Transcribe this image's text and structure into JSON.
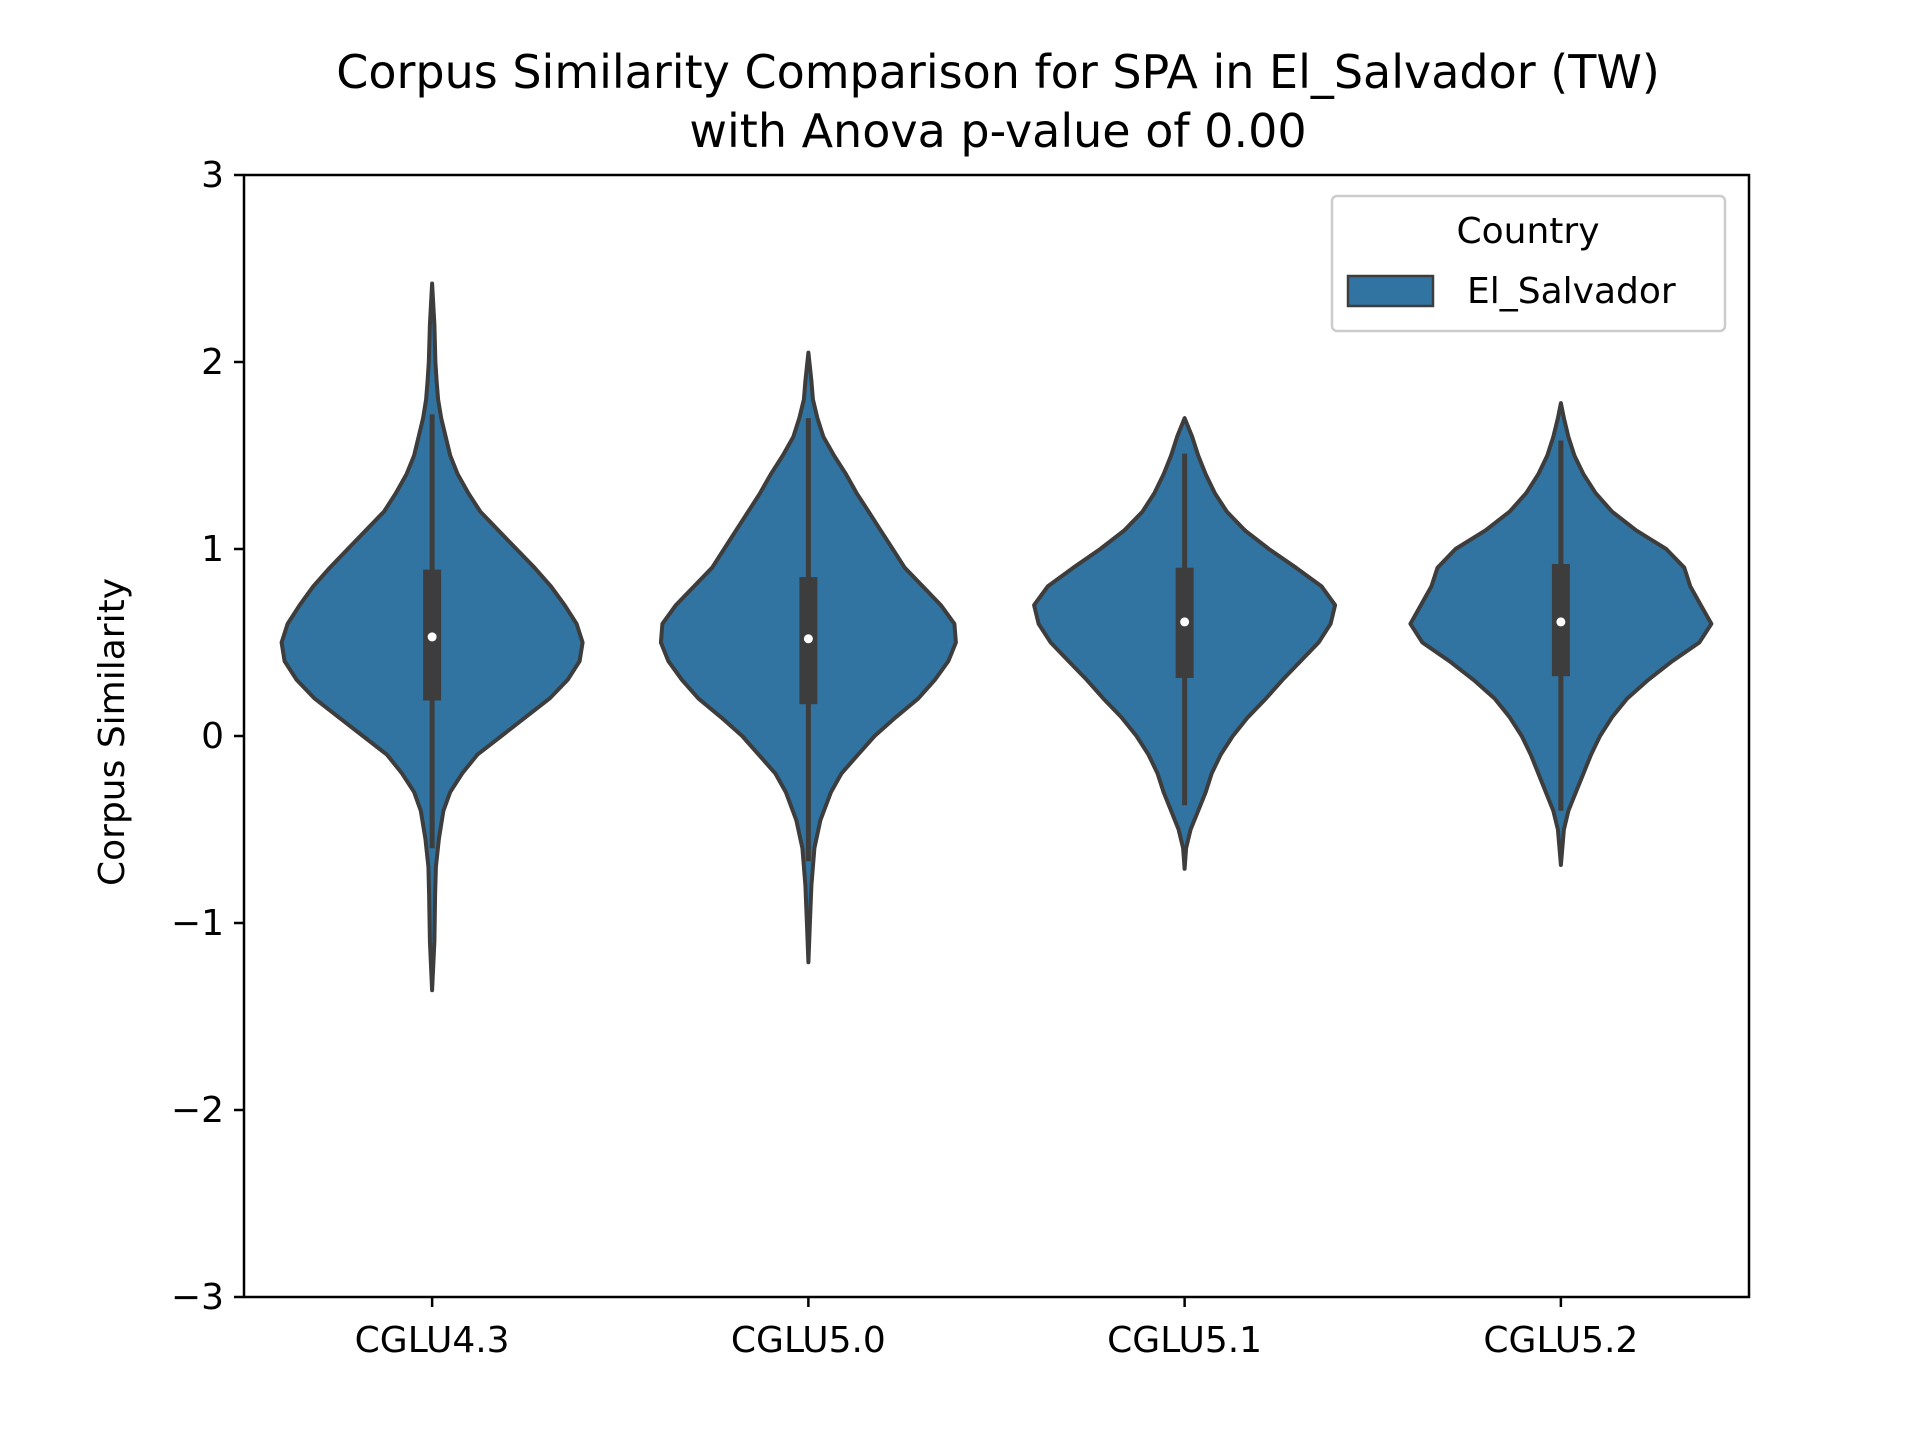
{
  "chart_data": {
    "type": "violin",
    "title": "Corpus Similarity Comparison for SPA in El_Salvador (TW)",
    "subtitle": "with Anova p-value of 0.00",
    "xlabel": "",
    "ylabel": "Corpus Similarity",
    "ylim": [
      -3,
      3
    ],
    "y_ticks": [
      3,
      2,
      1,
      0,
      -1,
      -2,
      -3
    ],
    "y_tick_labels": [
      "3",
      "2",
      "1",
      "0",
      "−1",
      "−2",
      "−3"
    ],
    "categories": [
      "CGLU4.3",
      "CGLU5.0",
      "CGLU5.1",
      "CGLU5.2"
    ],
    "legend": {
      "title": "Country",
      "position": "top-right",
      "entries": [
        "El_Salvador"
      ]
    },
    "grid": false,
    "colors": {
      "violin_fill": "#3274a1",
      "outline": "#3d3d3d",
      "box": "#3d3d3d",
      "median": "#ffffff",
      "axis": "#000000"
    },
    "series": [
      {
        "name": "El_Salvador",
        "violins": [
          {
            "category": "CGLU4.3",
            "median": 0.53,
            "q1": 0.19,
            "q3": 0.89,
            "whisker_low": -0.6,
            "whisker_high": 1.72,
            "y_min": -1.36,
            "y_max": 2.42,
            "profile": [
              [
                -1.36,
                0.0
              ],
              [
                -1.1,
                0.015
              ],
              [
                -0.85,
                0.02
              ],
              [
                -0.7,
                0.025
              ],
              [
                -0.55,
                0.045
              ],
              [
                -0.4,
                0.075
              ],
              [
                -0.3,
                0.12
              ],
              [
                -0.2,
                0.2
              ],
              [
                -0.1,
                0.3
              ],
              [
                0.0,
                0.46
              ],
              [
                0.1,
                0.62
              ],
              [
                0.2,
                0.78
              ],
              [
                0.3,
                0.9
              ],
              [
                0.4,
                0.98
              ],
              [
                0.5,
                1.0
              ],
              [
                0.6,
                0.96
              ],
              [
                0.7,
                0.88
              ],
              [
                0.8,
                0.79
              ],
              [
                0.9,
                0.68
              ],
              [
                1.0,
                0.56
              ],
              [
                1.1,
                0.44
              ],
              [
                1.2,
                0.32
              ],
              [
                1.3,
                0.24
              ],
              [
                1.4,
                0.17
              ],
              [
                1.5,
                0.12
              ],
              [
                1.6,
                0.09
              ],
              [
                1.7,
                0.06
              ],
              [
                1.8,
                0.04
              ],
              [
                1.9,
                0.03
              ],
              [
                2.0,
                0.022
              ],
              [
                2.2,
                0.015
              ],
              [
                2.42,
                0.0
              ]
            ]
          },
          {
            "category": "CGLU5.0",
            "median": 0.52,
            "q1": 0.17,
            "q3": 0.85,
            "whisker_low": -0.67,
            "whisker_high": 1.7,
            "y_min": -1.21,
            "y_max": 2.05,
            "profile": [
              [
                -1.21,
                0.0
              ],
              [
                -1.0,
                0.01
              ],
              [
                -0.8,
                0.02
              ],
              [
                -0.6,
                0.04
              ],
              [
                -0.45,
                0.08
              ],
              [
                -0.3,
                0.15
              ],
              [
                -0.2,
                0.22
              ],
              [
                -0.1,
                0.33
              ],
              [
                0.0,
                0.44
              ],
              [
                0.1,
                0.58
              ],
              [
                0.2,
                0.73
              ],
              [
                0.3,
                0.84
              ],
              [
                0.4,
                0.93
              ],
              [
                0.5,
                0.98
              ],
              [
                0.6,
                0.97
              ],
              [
                0.7,
                0.88
              ],
              [
                0.8,
                0.76
              ],
              [
                0.9,
                0.64
              ],
              [
                1.0,
                0.56
              ],
              [
                1.1,
                0.48
              ],
              [
                1.2,
                0.4
              ],
              [
                1.3,
                0.32
              ],
              [
                1.4,
                0.25
              ],
              [
                1.5,
                0.17
              ],
              [
                1.6,
                0.1
              ],
              [
                1.7,
                0.06
              ],
              [
                1.8,
                0.03
              ],
              [
                1.9,
                0.02
              ],
              [
                2.05,
                0.0
              ]
            ]
          },
          {
            "category": "CGLU5.1",
            "median": 0.61,
            "q1": 0.31,
            "q3": 0.9,
            "whisker_low": -0.37,
            "whisker_high": 1.51,
            "y_min": -0.71,
            "y_max": 1.7,
            "profile": [
              [
                -0.71,
                0.0
              ],
              [
                -0.6,
                0.01
              ],
              [
                -0.5,
                0.04
              ],
              [
                -0.4,
                0.09
              ],
              [
                -0.3,
                0.14
              ],
              [
                -0.2,
                0.18
              ],
              [
                -0.1,
                0.24
              ],
              [
                0.0,
                0.32
              ],
              [
                0.1,
                0.42
              ],
              [
                0.2,
                0.54
              ],
              [
                0.3,
                0.65
              ],
              [
                0.4,
                0.77
              ],
              [
                0.5,
                0.89
              ],
              [
                0.6,
                0.97
              ],
              [
                0.7,
                1.0
              ],
              [
                0.8,
                0.91
              ],
              [
                0.9,
                0.74
              ],
              [
                1.0,
                0.56
              ],
              [
                1.1,
                0.4
              ],
              [
                1.2,
                0.28
              ],
              [
                1.3,
                0.2
              ],
              [
                1.4,
                0.14
              ],
              [
                1.5,
                0.09
              ],
              [
                1.6,
                0.05
              ],
              [
                1.7,
                0.0
              ]
            ]
          },
          {
            "category": "CGLU5.2",
            "median": 0.61,
            "q1": 0.32,
            "q3": 0.92,
            "whisker_low": -0.4,
            "whisker_high": 1.58,
            "y_min": -0.69,
            "y_max": 1.78,
            "profile": [
              [
                -0.69,
                0.0
              ],
              [
                -0.5,
                0.02
              ],
              [
                -0.4,
                0.05
              ],
              [
                -0.3,
                0.1
              ],
              [
                -0.2,
                0.15
              ],
              [
                -0.1,
                0.2
              ],
              [
                0.0,
                0.26
              ],
              [
                0.1,
                0.34
              ],
              [
                0.2,
                0.44
              ],
              [
                0.3,
                0.58
              ],
              [
                0.4,
                0.74
              ],
              [
                0.5,
                0.92
              ],
              [
                0.6,
                1.0
              ],
              [
                0.7,
                0.93
              ],
              [
                0.8,
                0.86
              ],
              [
                0.9,
                0.82
              ],
              [
                1.0,
                0.7
              ],
              [
                1.1,
                0.5
              ],
              [
                1.2,
                0.34
              ],
              [
                1.3,
                0.23
              ],
              [
                1.4,
                0.15
              ],
              [
                1.5,
                0.09
              ],
              [
                1.6,
                0.05
              ],
              [
                1.7,
                0.02
              ],
              [
                1.78,
                0.0
              ]
            ]
          }
        ]
      }
    ]
  }
}
